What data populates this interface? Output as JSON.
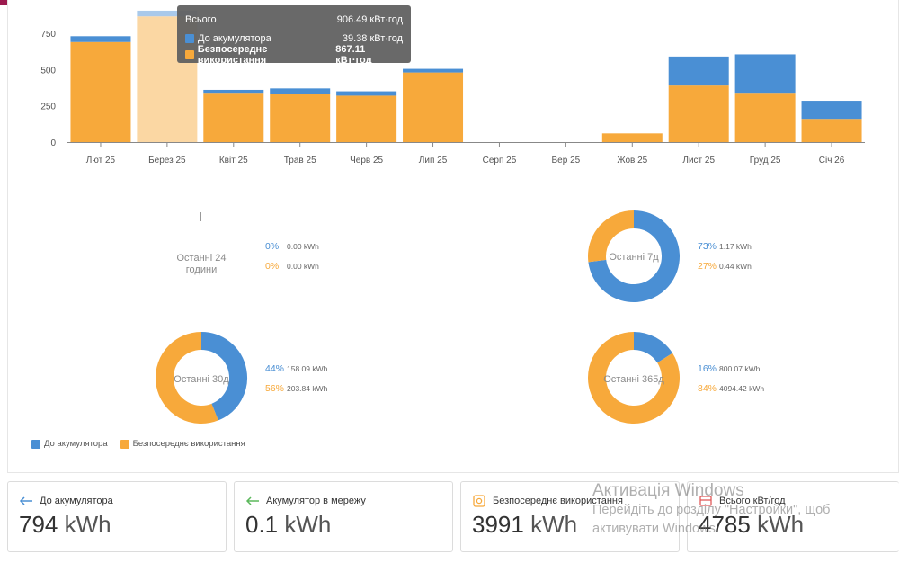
{
  "chart_data": [
    {
      "type": "bar",
      "stacked": true,
      "categories": [
        "Лют 25",
        "Берез 25",
        "Квіт 25",
        "Трав 25",
        "Черв 25",
        "Лип 25",
        "Серп 25",
        "Вер 25",
        "Жов 25",
        "Лист 25",
        "Груд 25",
        "Січ 26"
      ],
      "series": [
        {
          "name": "Безпосереднє використання",
          "color": "#f7a93b",
          "values": [
            690,
            867,
            340,
            330,
            320,
            480,
            0,
            0,
            60,
            390,
            340,
            160
          ]
        },
        {
          "name": "До акумулятора",
          "color": "#4a8fd4",
          "values": [
            40,
            39,
            20,
            40,
            30,
            25,
            0,
            0,
            0,
            200,
            265,
            125
          ]
        }
      ],
      "highlighted_category": "Берез 25",
      "ylim": [
        0,
        980
      ],
      "yticks": [
        0,
        250,
        500,
        750
      ],
      "tooltip": {
        "title": "Всього",
        "total": "906.49 кВт·год",
        "rows": [
          {
            "label": "До акумулятора",
            "value": "39.38 кВт·год",
            "color": "#4a8fd4"
          },
          {
            "label": "Безпосереднє використання",
            "value": "867.11 кВт·год",
            "color": "#f7a93b"
          }
        ]
      }
    },
    {
      "type": "pie",
      "donuts": [
        {
          "label": "Останні 24 години",
          "slices": [
            {
              "name": "До акумулятора",
              "value": 0,
              "pct": "0%",
              "kwh": "0.00 kWh",
              "color": "#4a8fd4"
            },
            {
              "name": "Безпосереднє використання",
              "value": 0,
              "pct": "0%",
              "kwh": "0.00 kWh",
              "color": "#f7a93b"
            }
          ]
        },
        {
          "label": "Останні 7д",
          "slices": [
            {
              "name": "До акумулятора",
              "value": 73,
              "pct": "73%",
              "kwh": "1.17 kWh",
              "color": "#4a8fd4"
            },
            {
              "name": "Безпосереднє використання",
              "value": 27,
              "pct": "27%",
              "kwh": "0.44 kWh",
              "color": "#f7a93b"
            }
          ]
        },
        {
          "label": "Останні 30д",
          "slices": [
            {
              "name": "До акумулятора",
              "value": 44,
              "pct": "44%",
              "kwh": "158.09 kWh",
              "color": "#4a8fd4"
            },
            {
              "name": "Безпосереднє використання",
              "value": 56,
              "pct": "56%",
              "kwh": "203.84 kWh",
              "color": "#f7a93b"
            }
          ]
        },
        {
          "label": "Останні 365д",
          "slices": [
            {
              "name": "До акумулятора",
              "value": 16,
              "pct": "16%",
              "kwh": "800.07 kWh",
              "color": "#4a8fd4"
            },
            {
              "name": "Безпосереднє використання",
              "value": 84,
              "pct": "84%",
              "kwh": "4094.42 kWh",
              "color": "#f7a93b"
            }
          ]
        }
      ],
      "legend": [
        {
          "label": "До акумулятора",
          "color": "#4a8fd4"
        },
        {
          "label": "Безпосереднє використання",
          "color": "#f7a93b"
        }
      ]
    }
  ],
  "cards": [
    {
      "icon": "arrow-left-icon",
      "title": "До акумулятора",
      "value": "794",
      "unit": "kWh",
      "color": "#4a8fd4"
    },
    {
      "icon": "arrow-left-icon",
      "title": "Акумулятор в мережу",
      "value": "0.1",
      "unit": "kWh",
      "color": "#5cb85c"
    },
    {
      "icon": "solar-icon",
      "title": "Безпосереднє використання",
      "value": "3991",
      "unit": "kWh",
      "color": "#f7a93b"
    },
    {
      "icon": "meter-icon",
      "title": "Всього кВт/год",
      "value": "4785",
      "unit": "kWh",
      "color": "#e05a5a"
    }
  ],
  "watermark": {
    "title": "Активація Windows",
    "line1": "Перейдіть до розділу \"Настройки\", щоб",
    "line2": "активувати Windows."
  }
}
